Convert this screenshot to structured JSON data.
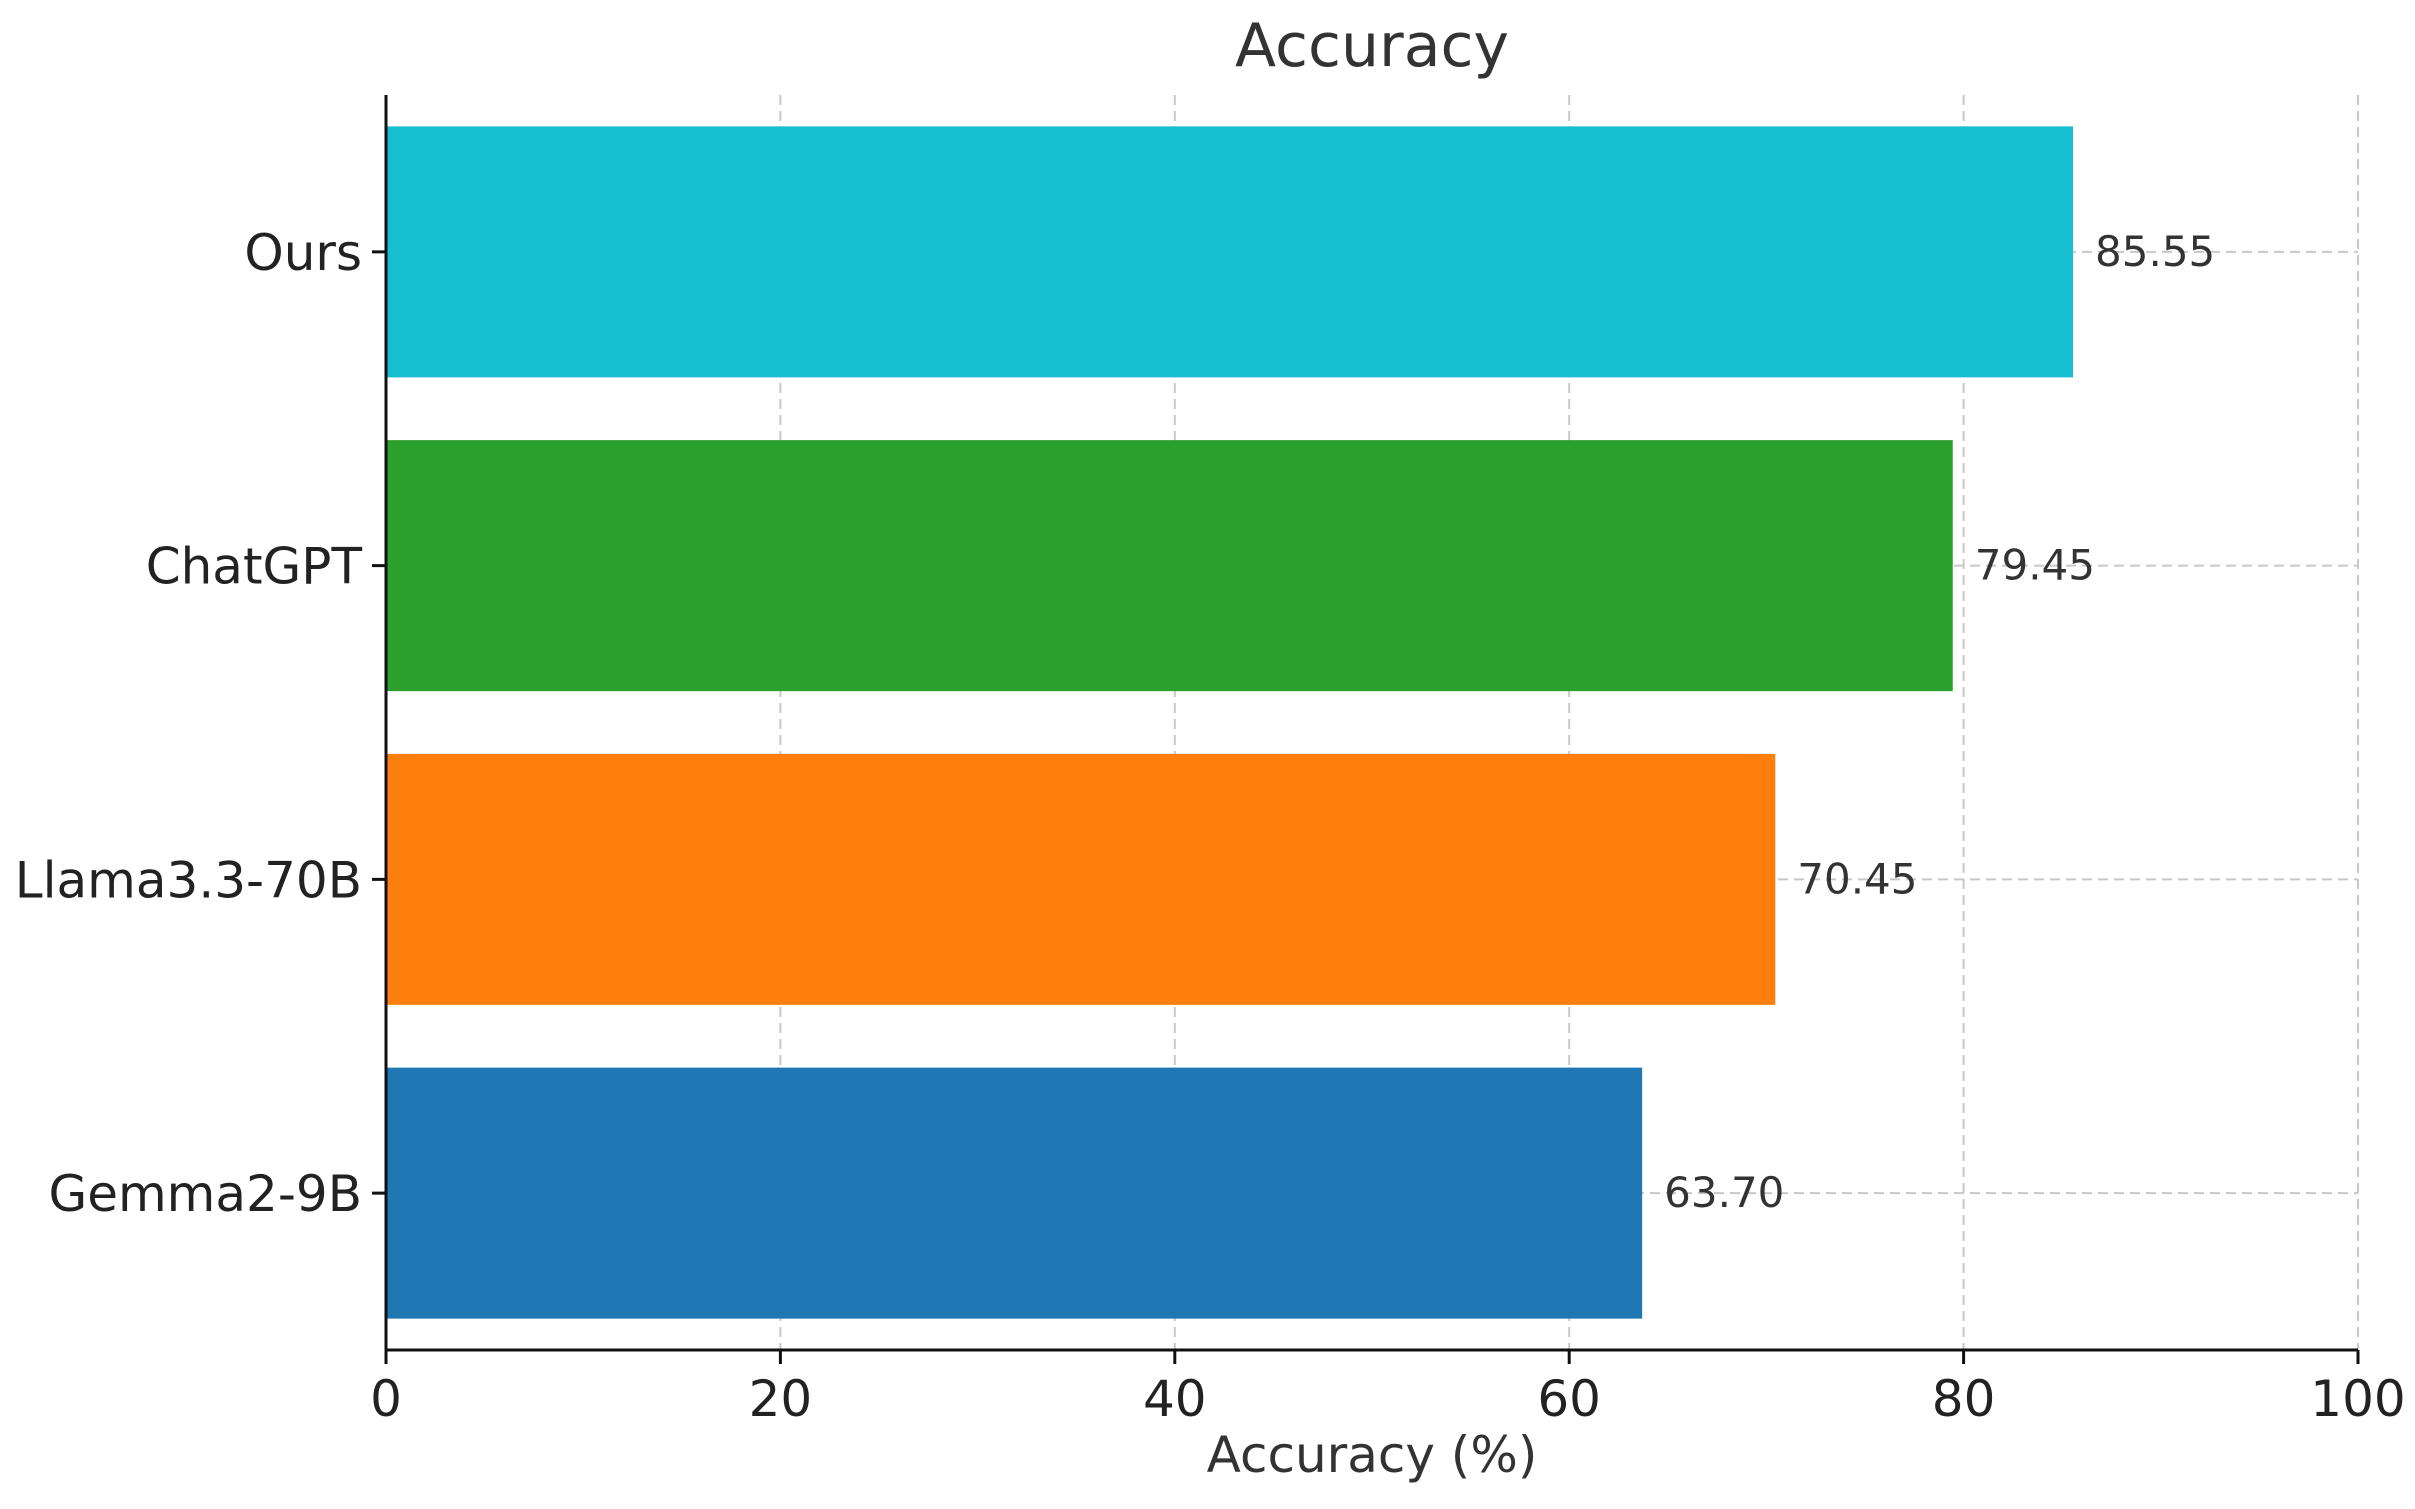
{
  "chart_data": {
    "type": "bar",
    "orientation": "horizontal",
    "title": "Accuracy",
    "xlabel": "Accuracy (%)",
    "ylabel": "",
    "xlim": [
      0,
      100
    ],
    "xticks": [
      0,
      20,
      40,
      60,
      80,
      100
    ],
    "grid": true,
    "categories": [
      "Ours",
      "ChatGPT",
      "Llama3.3-70B",
      "Gemma2-9B"
    ],
    "values": [
      85.55,
      79.45,
      70.45,
      63.7
    ],
    "value_labels": [
      "85.55",
      "79.45",
      "70.45",
      "63.70"
    ],
    "colors": [
      "#17becf",
      "#2ca02c",
      "#ff7f0e",
      "#1f77b4"
    ]
  }
}
